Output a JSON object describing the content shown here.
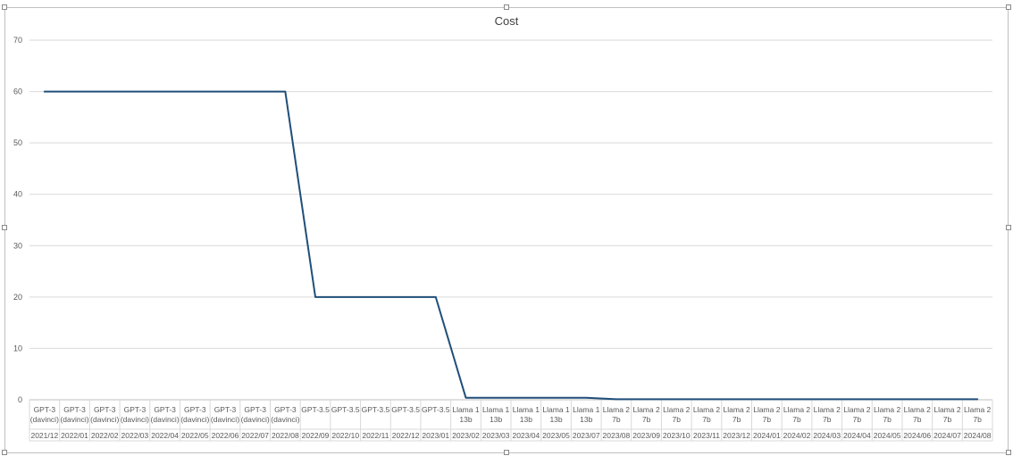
{
  "chart_data": {
    "type": "line",
    "title": "Cost",
    "xlabel": "",
    "ylabel": "",
    "ylim": [
      0,
      70
    ],
    "yticks": [
      0,
      10,
      20,
      30,
      40,
      50,
      60,
      70
    ],
    "grid": true,
    "legend": "none",
    "line_color": "#1f4e79",
    "categories": [
      {
        "model": [
          "GPT-3",
          "(davinci)"
        ],
        "date": "2021/12"
      },
      {
        "model": [
          "GPT-3",
          "(davinci)"
        ],
        "date": "2022/01"
      },
      {
        "model": [
          "GPT-3",
          "(davinci)"
        ],
        "date": "2022/02"
      },
      {
        "model": [
          "GPT-3",
          "(davinci)"
        ],
        "date": "2022/03"
      },
      {
        "model": [
          "GPT-3",
          "(davinci)"
        ],
        "date": "2022/04"
      },
      {
        "model": [
          "GPT-3",
          "(davinci)"
        ],
        "date": "2022/05"
      },
      {
        "model": [
          "GPT-3",
          "(davinci)"
        ],
        "date": "2022/06"
      },
      {
        "model": [
          "GPT-3",
          "(davinci)"
        ],
        "date": "2022/07"
      },
      {
        "model": [
          "GPT-3",
          "(davinci)"
        ],
        "date": "2022/08"
      },
      {
        "model": [
          "GPT-3.5"
        ],
        "date": "2022/09"
      },
      {
        "model": [
          "GPT-3.5"
        ],
        "date": "2022/10"
      },
      {
        "model": [
          "GPT-3.5"
        ],
        "date": "2022/11"
      },
      {
        "model": [
          "GPT-3.5"
        ],
        "date": "2022/12"
      },
      {
        "model": [
          "GPT-3.5"
        ],
        "date": "2023/01"
      },
      {
        "model": [
          "Llama 1",
          "13b"
        ],
        "date": "2023/02"
      },
      {
        "model": [
          "Llama 1",
          "13b"
        ],
        "date": "2023/03"
      },
      {
        "model": [
          "Llama 1",
          "13b"
        ],
        "date": "2023/04"
      },
      {
        "model": [
          "Llama 1",
          "13b"
        ],
        "date": "2023/05"
      },
      {
        "model": [
          "Llama 1",
          "13b"
        ],
        "date": "2023/07"
      },
      {
        "model": [
          "Llama 2",
          "7b"
        ],
        "date": "2023/08"
      },
      {
        "model": [
          "Llama 2",
          "7b"
        ],
        "date": "2023/09"
      },
      {
        "model": [
          "Llama 2",
          "7b"
        ],
        "date": "2023/10"
      },
      {
        "model": [
          "Llama 2",
          "7b"
        ],
        "date": "2023/11"
      },
      {
        "model": [
          "Llama 2",
          "7b"
        ],
        "date": "2023/12"
      },
      {
        "model": [
          "Llama 2",
          "7b"
        ],
        "date": "2024/01"
      },
      {
        "model": [
          "Llama 2",
          "7b"
        ],
        "date": "2024/02"
      },
      {
        "model": [
          "Llama 2",
          "7b"
        ],
        "date": "2024/03"
      },
      {
        "model": [
          "Llama 2",
          "7b"
        ],
        "date": "2024/04"
      },
      {
        "model": [
          "Llama 2",
          "7b"
        ],
        "date": "2024/05"
      },
      {
        "model": [
          "Llama 2",
          "7b"
        ],
        "date": "2024/06"
      },
      {
        "model": [
          "Llama 2",
          "7b"
        ],
        "date": "2024/07"
      },
      {
        "model": [
          "Llama 2",
          "7b"
        ],
        "date": "2024/08"
      }
    ],
    "series": [
      {
        "values": [
          60,
          60,
          60,
          60,
          60,
          60,
          60,
          60,
          60,
          20,
          20,
          20,
          20,
          20,
          0.4,
          0.4,
          0.4,
          0.4,
          0.4,
          0.1,
          0.1,
          0.1,
          0.1,
          0.1,
          0.1,
          0.1,
          0.1,
          0.1,
          0.1,
          0.1,
          0.1,
          0.1
        ]
      }
    ]
  }
}
